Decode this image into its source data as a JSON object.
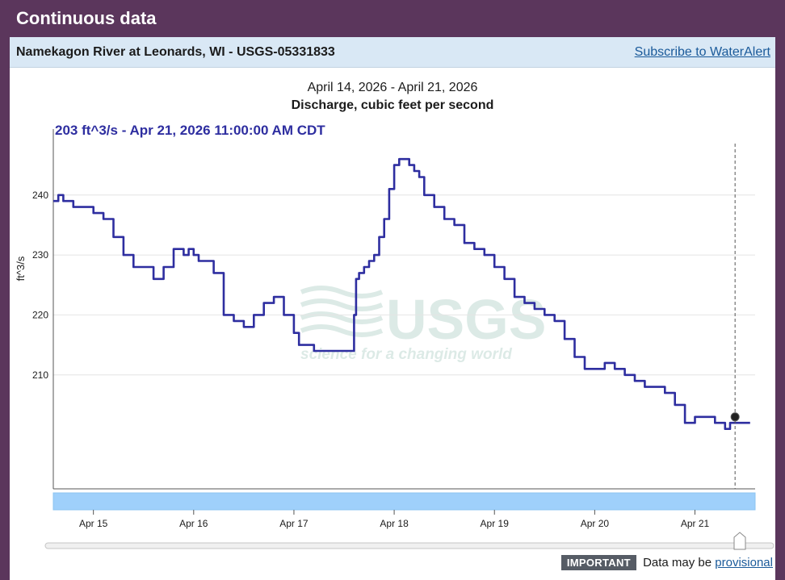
{
  "header": {
    "title": "Continuous data"
  },
  "site": {
    "name": "Namekagon River at Leonards, WI - USGS-05331833",
    "subscribe_link": "Subscribe to WaterAlert"
  },
  "graph": {
    "date_range": "April 14, 2026 - April 21, 2026",
    "parameter": "Discharge, cubic feet per second",
    "tooltip": "203 ft^3/s - Apr 21, 2026 11:00:00 AM CDT",
    "watermark_logo": "USGS",
    "watermark_tagline": "science for a changing world"
  },
  "chart_data": {
    "type": "line",
    "xlabel": "",
    "ylabel": "ft^3/s",
    "xlim": [
      14.6,
      21.6
    ],
    "ylim": [
      191,
      251
    ],
    "y_ticks": [
      210,
      220,
      230,
      240
    ],
    "x_ticks": [
      {
        "label": "Apr 15",
        "x": 15.0
      },
      {
        "label": "Apr 16",
        "x": 16.0
      },
      {
        "label": "Apr 17",
        "x": 17.0
      },
      {
        "label": "Apr 18",
        "x": 18.0
      },
      {
        "label": "Apr 19",
        "x": 19.0
      },
      {
        "label": "Apr 20",
        "x": 20.0
      },
      {
        "label": "Apr 21",
        "x": 21.0
      }
    ],
    "grid": "horizontal",
    "color": "#2e2ea0",
    "series": [
      {
        "x": [
          14.6,
          14.65,
          14.7,
          14.8,
          14.9,
          15.0,
          15.1,
          15.2,
          15.3,
          15.4,
          15.5,
          15.6,
          15.7,
          15.8,
          15.85,
          15.9,
          15.95,
          16.0,
          16.05,
          16.1,
          16.2,
          16.3,
          16.4,
          16.5,
          16.6,
          16.7,
          16.8,
          16.9,
          17.0,
          17.05,
          17.1,
          17.2,
          17.3,
          17.4,
          17.5,
          17.55,
          17.6,
          17.62,
          17.65,
          17.7,
          17.75,
          17.8,
          17.85,
          17.9,
          17.95,
          18.0,
          18.05,
          18.1,
          18.15,
          18.2,
          18.25,
          18.3,
          18.4,
          18.5,
          18.6,
          18.7,
          18.8,
          18.9,
          19.0,
          19.1,
          19.2,
          19.3,
          19.4,
          19.5,
          19.6,
          19.7,
          19.8,
          19.9,
          20.0,
          20.1,
          20.2,
          20.3,
          20.4,
          20.5,
          20.6,
          20.7,
          20.8,
          20.9,
          21.0,
          21.1,
          21.2,
          21.3,
          21.35,
          21.4,
          21.45,
          21.5,
          21.55
        ],
        "y": [
          239,
          240,
          239,
          238,
          238,
          237,
          236,
          233,
          230,
          228,
          228,
          226,
          228,
          231,
          231,
          230,
          231,
          230,
          229,
          229,
          227,
          220,
          219,
          218,
          220,
          222,
          223,
          220,
          217,
          215,
          215,
          214,
          214,
          214,
          214,
          214,
          220,
          226,
          227,
          228,
          229,
          230,
          233,
          236,
          241,
          245,
          246,
          246,
          245,
          244,
          243,
          240,
          238,
          236,
          235,
          232,
          231,
          230,
          228,
          226,
          223,
          222,
          221,
          220,
          219,
          216,
          213,
          211,
          211,
          212,
          211,
          210,
          209,
          208,
          208,
          207,
          205,
          202,
          203,
          203,
          202,
          201,
          202,
          202,
          202,
          202,
          202
        ]
      }
    ],
    "point": {
      "x": 21.4,
      "y": 203
    }
  },
  "footer": {
    "important_badge": "IMPORTANT",
    "notice": "Data may be",
    "provisional_link": "provisional"
  }
}
